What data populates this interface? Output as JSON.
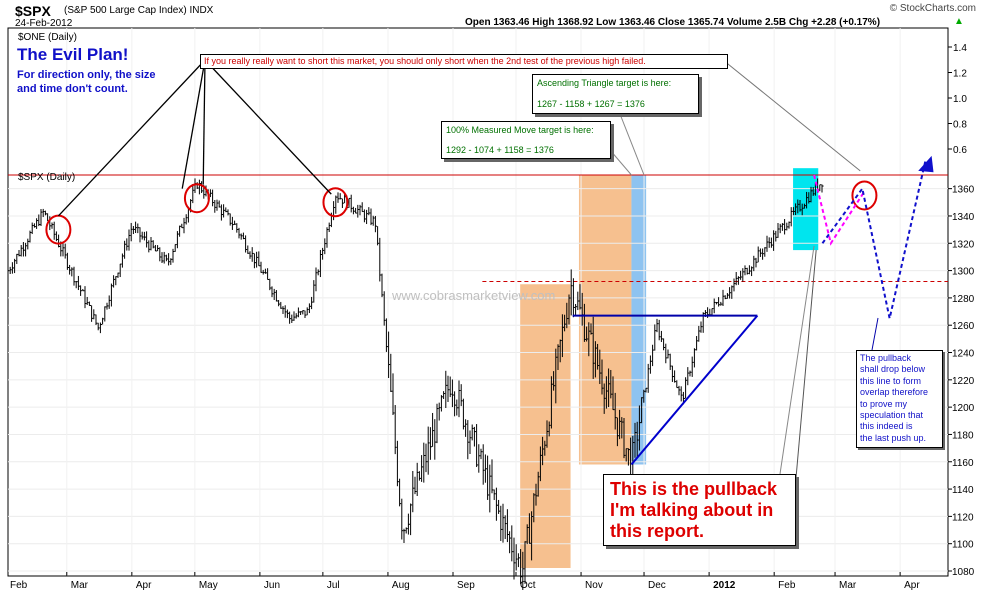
{
  "header": {
    "symbol": "$SPX",
    "name": "(S&P 500 Large Cap Index) INDX",
    "date": "24-Feb-2012",
    "brand": "© StockCharts.com",
    "ohlc": "Open 1363.46   High 1368.92   Low 1363.46   Close 1365.74   Volume 2.5B   Chg +2.28 (+0.17%)",
    "chg_arrow": "▲"
  },
  "chart_data": {
    "type": "ohlc",
    "title": "The Evil Plan!",
    "subtitle": "For direction only, the size and time don't count.",
    "top_panel_label": "$ONE (Daily)",
    "main_label": "$SPX (Daily)",
    "watermark": "www.cobrasmarketview.com",
    "left_scale_ticks": [
      1.4,
      1.2,
      1.0,
      0.8,
      0.6
    ],
    "y_ticks": [
      1080,
      1100,
      1120,
      1140,
      1160,
      1180,
      1200,
      1220,
      1240,
      1260,
      1280,
      1300,
      1320,
      1340,
      1360
    ],
    "ylim": [
      1072,
      1398
    ],
    "x_tick_labels": [
      "Feb",
      "Mar",
      "Apr",
      "May",
      "Jun",
      "Jul",
      "Aug",
      "Sep",
      "Oct",
      "Nov",
      "Dec",
      "2012",
      "Feb",
      "Mar",
      "Apr"
    ],
    "price_anchors": [
      [
        "2011-02-01",
        1300
      ],
      [
        "2011-02-18",
        1343
      ],
      [
        "2011-03-16",
        1258
      ],
      [
        "2011-04-01",
        1332
      ],
      [
        "2011-04-18",
        1305
      ],
      [
        "2011-05-02",
        1364
      ],
      [
        "2011-05-20",
        1333
      ],
      [
        "2011-06-15",
        1265
      ],
      [
        "2011-06-24",
        1270
      ],
      [
        "2011-07-07",
        1356
      ],
      [
        "2011-07-26",
        1335
      ],
      [
        "2011-08-08",
        1110
      ],
      [
        "2011-08-31",
        1220
      ],
      [
        "2011-09-22",
        1125
      ],
      [
        "2011-10-04",
        1080
      ],
      [
        "2011-10-27",
        1290
      ],
      [
        "2011-11-25",
        1158
      ],
      [
        "2011-12-07",
        1260
      ],
      [
        "2011-12-19",
        1205
      ],
      [
        "2011-12-29",
        1265
      ],
      [
        "2012-01-13",
        1290
      ],
      [
        "2012-02-01",
        1325
      ],
      [
        "2012-02-24",
        1366
      ]
    ],
    "horizontal_lines": [
      {
        "price": 1370,
        "style": "solid",
        "color": "#cc0000"
      },
      {
        "price": 1292,
        "style": "dashed",
        "color": "#cc0000"
      }
    ],
    "annotations": {
      "top_note": "If you really really want to short this market, you should only short when the 2nd test of the previous high failed.",
      "triangle_box": [
        "Ascending Triangle target is here:",
        "1267 - 1158 + 1267 = 1376"
      ],
      "measured_box": [
        "100% Measured Move target is here:",
        "1292 - 1074 + 1158 = 1376"
      ],
      "pullback_big": [
        "This is the pullback",
        "I'm talking about in",
        "this report."
      ],
      "pullback_note": [
        "The pullback",
        "shall drop below",
        "this line to form",
        "overlap therefore",
        "to prove my",
        "speculation that",
        "this indeed is",
        "the last push up."
      ]
    },
    "colors": {
      "up": "#000000",
      "highlight_orange": "#f6c08f",
      "highlight_blue": "#8ec3f0",
      "highlight_cyan": "#00e5ee",
      "projection": "#1010cc",
      "circle": "#dd0000"
    }
  }
}
